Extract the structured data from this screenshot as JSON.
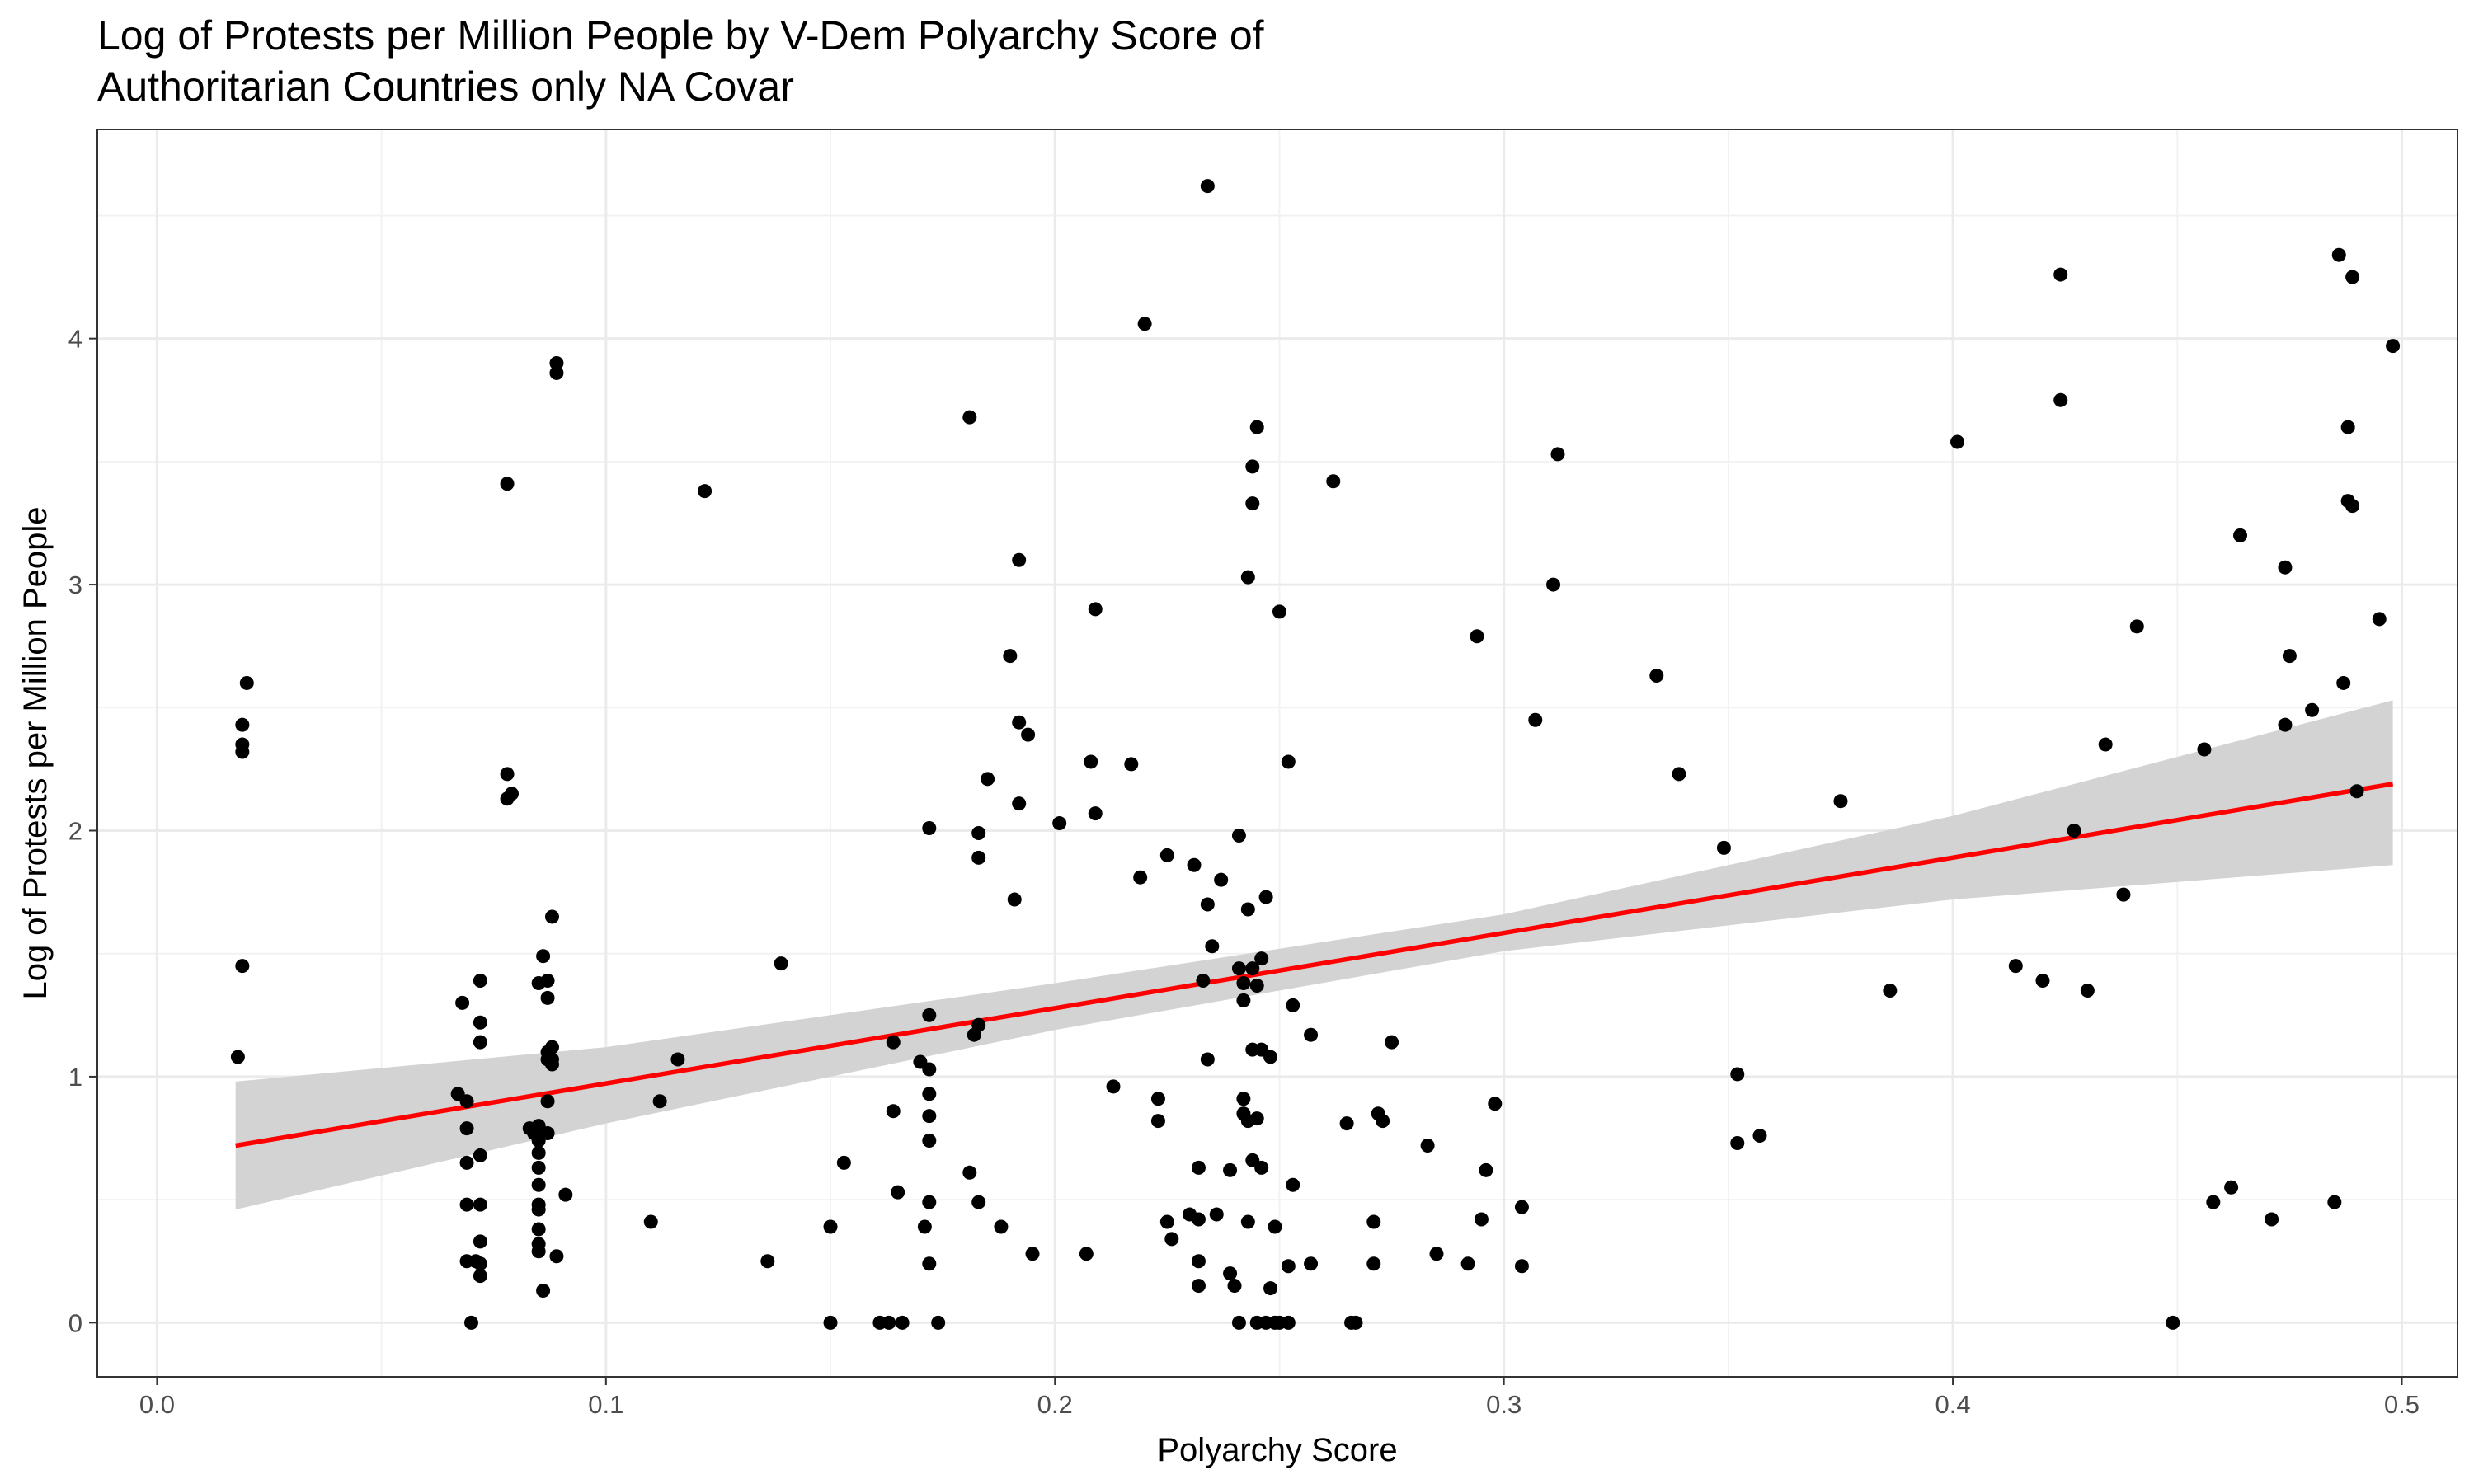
{
  "chart_data": {
    "type": "scatter",
    "title_lines": [
      "Log of Protests per Million People by V-Dem Polyarchy Score of",
      "Authoritarian Countries only NA Covar"
    ],
    "xlabel": "Polyarchy Score",
    "ylabel": "Log of Protests per Million People",
    "xlim": [
      -0.0133,
      0.5124
    ],
    "ylim": [
      -0.22,
      4.85
    ],
    "x_ticks": [
      0.0,
      0.1,
      0.2,
      0.3,
      0.4,
      0.5
    ],
    "x_tick_labels": [
      "0.0",
      "0.1",
      "0.2",
      "0.3",
      "0.4",
      "0.5"
    ],
    "y_ticks": [
      0,
      1,
      2,
      3,
      4
    ],
    "y_tick_labels": [
      "0",
      "1",
      "2",
      "3",
      "4"
    ],
    "grid": true,
    "point_color": "#000000",
    "fit_line_color": "#ff0000",
    "ribbon_color": "#d3d3d3",
    "points": [
      [
        0.018,
        1.08
      ],
      [
        0.019,
        2.43
      ],
      [
        0.019,
        2.35
      ],
      [
        0.019,
        2.32
      ],
      [
        0.019,
        1.45
      ],
      [
        0.02,
        2.6
      ],
      [
        0.067,
        0.93
      ],
      [
        0.068,
        1.3
      ],
      [
        0.069,
        0.9
      ],
      [
        0.069,
        0.79
      ],
      [
        0.069,
        0.65
      ],
      [
        0.069,
        0.48
      ],
      [
        0.069,
        0.25
      ],
      [
        0.07,
        0.0
      ],
      [
        0.071,
        0.25
      ],
      [
        0.072,
        1.39
      ],
      [
        0.072,
        1.22
      ],
      [
        0.072,
        1.14
      ],
      [
        0.072,
        0.68
      ],
      [
        0.072,
        0.48
      ],
      [
        0.072,
        0.33
      ],
      [
        0.072,
        0.24
      ],
      [
        0.072,
        0.19
      ],
      [
        0.078,
        3.41
      ],
      [
        0.078,
        2.23
      ],
      [
        0.078,
        2.13
      ],
      [
        0.079,
        2.15
      ],
      [
        0.083,
        0.79
      ],
      [
        0.084,
        0.77
      ],
      [
        0.085,
        0.8
      ],
      [
        0.085,
        0.74
      ],
      [
        0.085,
        0.69
      ],
      [
        0.085,
        0.63
      ],
      [
        0.085,
        0.56
      ],
      [
        0.085,
        0.48
      ],
      [
        0.085,
        0.46
      ],
      [
        0.085,
        0.38
      ],
      [
        0.085,
        0.32
      ],
      [
        0.085,
        0.29
      ],
      [
        0.085,
        1.38
      ],
      [
        0.086,
        1.49
      ],
      [
        0.086,
        0.13
      ],
      [
        0.087,
        1.39
      ],
      [
        0.087,
        1.32
      ],
      [
        0.087,
        1.1
      ],
      [
        0.087,
        1.07
      ],
      [
        0.087,
        0.9
      ],
      [
        0.087,
        0.77
      ],
      [
        0.088,
        1.65
      ],
      [
        0.088,
        1.12
      ],
      [
        0.088,
        1.07
      ],
      [
        0.088,
        1.05
      ],
      [
        0.089,
        0.27
      ],
      [
        0.089,
        3.9
      ],
      [
        0.089,
        3.86
      ],
      [
        0.091,
        0.52
      ],
      [
        0.11,
        0.41
      ],
      [
        0.112,
        0.9
      ],
      [
        0.116,
        1.07
      ],
      [
        0.122,
        3.38
      ],
      [
        0.136,
        0.25
      ],
      [
        0.139,
        1.46
      ],
      [
        0.15,
        0.39
      ],
      [
        0.15,
        0.0
      ],
      [
        0.153,
        0.65
      ],
      [
        0.161,
        0.0
      ],
      [
        0.163,
        0.0
      ],
      [
        0.164,
        0.86
      ],
      [
        0.164,
        1.14
      ],
      [
        0.165,
        0.53
      ],
      [
        0.166,
        0.0
      ],
      [
        0.17,
        1.06
      ],
      [
        0.171,
        0.39
      ],
      [
        0.172,
        2.01
      ],
      [
        0.172,
        1.25
      ],
      [
        0.172,
        1.03
      ],
      [
        0.172,
        0.93
      ],
      [
        0.172,
        0.84
      ],
      [
        0.172,
        0.74
      ],
      [
        0.172,
        0.49
      ],
      [
        0.172,
        0.24
      ],
      [
        0.174,
        0.0
      ],
      [
        0.181,
        3.68
      ],
      [
        0.181,
        0.61
      ],
      [
        0.182,
        1.17
      ],
      [
        0.183,
        1.99
      ],
      [
        0.183,
        1.89
      ],
      [
        0.183,
        1.21
      ],
      [
        0.183,
        0.49
      ],
      [
        0.185,
        2.21
      ],
      [
        0.188,
        0.39
      ],
      [
        0.19,
        2.71
      ],
      [
        0.191,
        1.72
      ],
      [
        0.192,
        3.1
      ],
      [
        0.192,
        2.44
      ],
      [
        0.192,
        2.11
      ],
      [
        0.194,
        2.39
      ],
      [
        0.195,
        0.28
      ],
      [
        0.201,
        2.03
      ],
      [
        0.207,
        0.28
      ],
      [
        0.208,
        2.28
      ],
      [
        0.209,
        2.9
      ],
      [
        0.209,
        2.07
      ],
      [
        0.213,
        0.96
      ],
      [
        0.217,
        2.27
      ],
      [
        0.219,
        1.81
      ],
      [
        0.22,
        4.06
      ],
      [
        0.223,
        0.91
      ],
      [
        0.223,
        0.82
      ],
      [
        0.225,
        1.9
      ],
      [
        0.225,
        0.41
      ],
      [
        0.226,
        0.34
      ],
      [
        0.23,
        0.44
      ],
      [
        0.231,
        1.86
      ],
      [
        0.232,
        0.63
      ],
      [
        0.232,
        0.42
      ],
      [
        0.232,
        0.25
      ],
      [
        0.232,
        0.15
      ],
      [
        0.233,
        1.39
      ],
      [
        0.234,
        4.62
      ],
      [
        0.234,
        1.7
      ],
      [
        0.234,
        1.07
      ],
      [
        0.235,
        1.53
      ],
      [
        0.236,
        0.44
      ],
      [
        0.237,
        1.8
      ],
      [
        0.239,
        0.62
      ],
      [
        0.239,
        0.2
      ],
      [
        0.24,
        0.15
      ],
      [
        0.241,
        1.98
      ],
      [
        0.241,
        1.44
      ],
      [
        0.241,
        0.0
      ],
      [
        0.242,
        1.38
      ],
      [
        0.242,
        1.31
      ],
      [
        0.242,
        0.91
      ],
      [
        0.242,
        0.85
      ],
      [
        0.243,
        3.03
      ],
      [
        0.243,
        1.68
      ],
      [
        0.243,
        0.82
      ],
      [
        0.243,
        0.41
      ],
      [
        0.244,
        3.48
      ],
      [
        0.244,
        3.33
      ],
      [
        0.244,
        1.44
      ],
      [
        0.244,
        0.66
      ],
      [
        0.244,
        1.11
      ],
      [
        0.245,
        3.64
      ],
      [
        0.245,
        1.37
      ],
      [
        0.245,
        0.83
      ],
      [
        0.245,
        0.0
      ],
      [
        0.246,
        1.48
      ],
      [
        0.246,
        1.11
      ],
      [
        0.246,
        0.63
      ],
      [
        0.247,
        1.73
      ],
      [
        0.247,
        0.0
      ],
      [
        0.248,
        1.08
      ],
      [
        0.248,
        0.14
      ],
      [
        0.249,
        0.39
      ],
      [
        0.249,
        0.0
      ],
      [
        0.25,
        2.89
      ],
      [
        0.25,
        0.0
      ],
      [
        0.252,
        0.0
      ],
      [
        0.252,
        0.23
      ],
      [
        0.252,
        2.28
      ],
      [
        0.253,
        1.29
      ],
      [
        0.253,
        0.56
      ],
      [
        0.257,
        1.17
      ],
      [
        0.257,
        0.24
      ],
      [
        0.262,
        3.42
      ],
      [
        0.265,
        0.81
      ],
      [
        0.266,
        0.0
      ],
      [
        0.267,
        0.0
      ],
      [
        0.271,
        0.41
      ],
      [
        0.271,
        0.24
      ],
      [
        0.272,
        0.85
      ],
      [
        0.273,
        0.82
      ],
      [
        0.275,
        1.14
      ],
      [
        0.283,
        0.72
      ],
      [
        0.285,
        0.28
      ],
      [
        0.292,
        0.24
      ],
      [
        0.294,
        2.79
      ],
      [
        0.295,
        0.42
      ],
      [
        0.296,
        0.62
      ],
      [
        0.298,
        0.89
      ],
      [
        0.304,
        0.47
      ],
      [
        0.304,
        0.23
      ],
      [
        0.307,
        2.45
      ],
      [
        0.311,
        3.0
      ],
      [
        0.312,
        3.53
      ],
      [
        0.334,
        2.63
      ],
      [
        0.339,
        2.23
      ],
      [
        0.349,
        1.93
      ],
      [
        0.352,
        1.01
      ],
      [
        0.352,
        0.73
      ],
      [
        0.357,
        0.76
      ],
      [
        0.375,
        2.12
      ],
      [
        0.386,
        1.35
      ],
      [
        0.401,
        3.58
      ],
      [
        0.414,
        1.45
      ],
      [
        0.42,
        1.39
      ],
      [
        0.424,
        4.26
      ],
      [
        0.424,
        3.75
      ],
      [
        0.427,
        2.0
      ],
      [
        0.43,
        1.35
      ],
      [
        0.434,
        2.35
      ],
      [
        0.438,
        1.74
      ],
      [
        0.441,
        2.83
      ],
      [
        0.449,
        0.0
      ],
      [
        0.456,
        2.33
      ],
      [
        0.458,
        0.49
      ],
      [
        0.462,
        0.55
      ],
      [
        0.464,
        3.2
      ],
      [
        0.471,
        0.42
      ],
      [
        0.474,
        3.07
      ],
      [
        0.474,
        2.43
      ],
      [
        0.475,
        2.71
      ],
      [
        0.48,
        2.49
      ],
      [
        0.485,
        0.49
      ],
      [
        0.486,
        4.34
      ],
      [
        0.487,
        2.6
      ],
      [
        0.488,
        3.64
      ],
      [
        0.488,
        3.34
      ],
      [
        0.489,
        3.32
      ],
      [
        0.489,
        4.25
      ],
      [
        0.49,
        2.16
      ],
      [
        0.495,
        2.86
      ],
      [
        0.498,
        3.97
      ]
    ],
    "fit_line": {
      "x": [
        0.0175,
        0.498
      ],
      "y": [
        0.72,
        2.19
      ]
    },
    "confidence_band": {
      "x": [
        0.0175,
        0.1,
        0.2,
        0.3,
        0.4,
        0.498
      ],
      "lower": [
        0.46,
        0.81,
        1.19,
        1.51,
        1.72,
        1.86
      ],
      "upper": [
        0.98,
        1.12,
        1.38,
        1.66,
        2.06,
        2.53
      ]
    }
  }
}
